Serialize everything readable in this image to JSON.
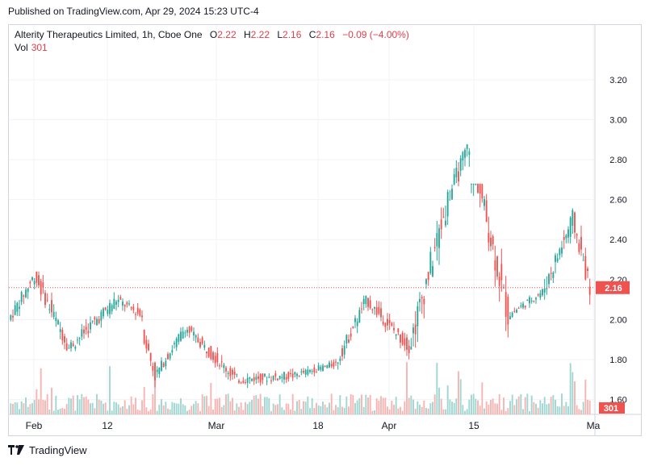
{
  "header": {
    "published": "Published on TradingView.com, Apr 29, 2024 15:23 UTC-4"
  },
  "legend": {
    "symbol": "Alterity Therapeutics Limited, 1h, Cboe One",
    "open_label": "O",
    "open": "2.22",
    "high_label": "H",
    "high": "2.22",
    "low_label": "L",
    "low": "2.16",
    "close_label": "C",
    "close": "2.16",
    "change": "−0.09 (−4.00%)",
    "vol_label": "Vol",
    "vol": "301"
  },
  "colors": {
    "up": "#26a69a",
    "down": "#ef5350",
    "vol_up": "#9fd6d0",
    "vol_down": "#f7b3b1",
    "price_line": "#ef5350",
    "grid": "#f0f3fa"
  },
  "footer": {
    "brand": "TradingView"
  },
  "chart_data": {
    "type": "candlestick",
    "y_axis": {
      "ticks": [
        "3.20",
        "3.00",
        "2.80",
        "2.60",
        "2.40",
        "2.20",
        "2.00",
        "1.80",
        "1.60"
      ],
      "range": [
        1.52,
        3.3
      ]
    },
    "x_axis": {
      "ticks": [
        "Feb",
        "12",
        "Mar",
        "18",
        "Apr",
        "15",
        "Ma"
      ]
    },
    "last_price_label": "2.16",
    "last_volume_label": "301",
    "segments": [
      {
        "label": "late Jan",
        "bars": 12,
        "start": 2.0,
        "end": 2.22,
        "low": 1.97,
        "high": 2.31
      },
      {
        "label": "early Feb",
        "bars": 16,
        "start": 2.22,
        "end": 1.86,
        "low": 1.84,
        "high": 2.24
      },
      {
        "label": "mid Feb",
        "bars": 22,
        "start": 1.86,
        "end": 2.1,
        "low": 1.84,
        "high": 2.2
      },
      {
        "label": "late Feb",
        "bars": 12,
        "start": 2.1,
        "end": 2.02,
        "low": 1.95,
        "high": 2.2
      },
      {
        "label": "Feb gap",
        "bars": 6,
        "start": 1.95,
        "end": 1.72,
        "low": 1.56,
        "high": 1.95
      },
      {
        "label": "late Feb rise",
        "bars": 14,
        "start": 1.72,
        "end": 1.96,
        "low": 1.7,
        "high": 1.98
      },
      {
        "label": "early Mar",
        "bars": 24,
        "start": 1.96,
        "end": 1.7,
        "low": 1.67,
        "high": 1.97
      },
      {
        "label": "mid Mar",
        "bars": 26,
        "start": 1.7,
        "end": 1.72,
        "low": 1.63,
        "high": 1.88
      },
      {
        "label": "late Mar",
        "bars": 20,
        "start": 1.72,
        "end": 1.78,
        "low": 1.66,
        "high": 1.84
      },
      {
        "label": "end Mar rise",
        "bars": 14,
        "start": 1.78,
        "end": 2.1,
        "low": 1.75,
        "high": 2.12
      },
      {
        "label": "early Apr",
        "bars": 20,
        "start": 2.1,
        "end": 1.86,
        "low": 1.8,
        "high": 2.12
      },
      {
        "label": "Apr rally",
        "bars": 18,
        "start": 1.86,
        "end": 2.6,
        "low": 1.85,
        "high": 2.65
      },
      {
        "label": "Apr peak",
        "bars": 10,
        "start": 2.6,
        "end": 2.88,
        "low": 2.6,
        "high": 3.16
      },
      {
        "label": "Apr drop",
        "bars": 18,
        "start": 2.88,
        "end": 2.02,
        "low": 1.91,
        "high": 2.68
      },
      {
        "label": "Apr base",
        "bars": 16,
        "start": 2.02,
        "end": 2.14,
        "low": 1.98,
        "high": 2.2
      },
      {
        "label": "Apr bounce",
        "bars": 14,
        "start": 2.14,
        "end": 2.5,
        "low": 2.1,
        "high": 2.64
      },
      {
        "label": "end Apr",
        "bars": 8,
        "start": 2.5,
        "end": 2.16,
        "low": 2.0,
        "high": 2.54
      }
    ]
  }
}
